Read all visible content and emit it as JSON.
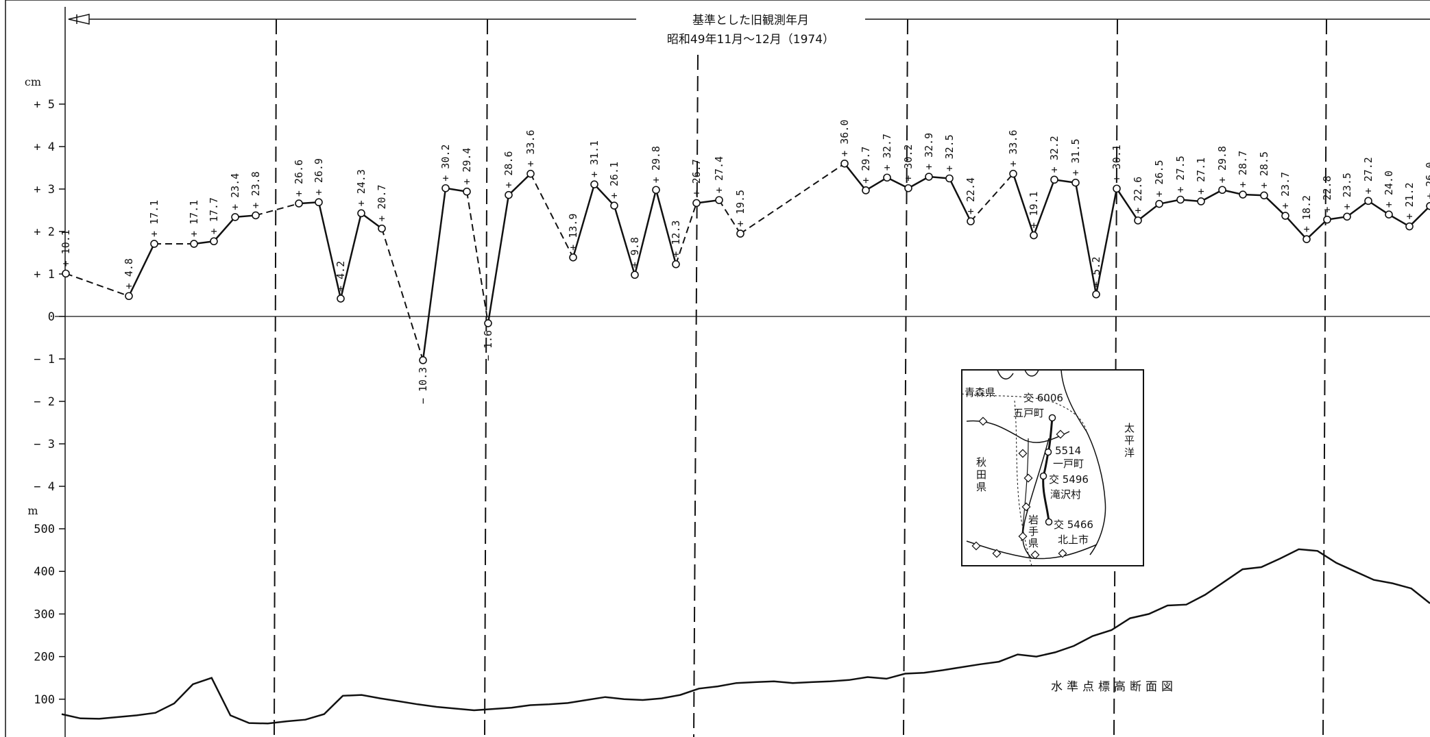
{
  "chart_data": [
    {
      "type": "line",
      "title": "基準とした旧観測年月",
      "subtitle": "昭和49年11月～12月（1974）",
      "unit": "cm",
      "ylim": [
        -5,
        5
      ],
      "y_ticks": [
        "+ 5",
        "+ 4",
        "+ 3",
        "+ 2",
        "+ 1",
        "0",
        "− 1",
        "− 2",
        "− 3",
        "− 4"
      ],
      "grid": false,
      "points": [
        {
          "label": "+ 10.1",
          "value": 10.1
        },
        {
          "label": "+ 4.8",
          "value": 4.8
        },
        {
          "label": "+ 17.1",
          "value": 17.1
        },
        {
          "label": "+ 17.1",
          "value": 17.1
        },
        {
          "label": "+ 17.7",
          "value": 17.7
        },
        {
          "label": "+ 23.4",
          "value": 23.4
        },
        {
          "label": "+ 23.8",
          "value": 23.8
        },
        {
          "label": "+ 26.6",
          "value": 26.6
        },
        {
          "label": "+ 26.9",
          "value": 26.9
        },
        {
          "label": "+ 4.2",
          "value": 4.2
        },
        {
          "label": "+ 24.3",
          "value": 24.3
        },
        {
          "label": "+ 20.7",
          "value": 20.7
        },
        {
          "label": "− 10.3",
          "value": -10.3
        },
        {
          "label": "+ 30.2",
          "value": 30.2
        },
        {
          "label": "+ 29.4",
          "value": 29.4
        },
        {
          "label": "− 1.6",
          "value": -1.6
        },
        {
          "label": "+ 28.6",
          "value": 28.6
        },
        {
          "label": "+ 33.6",
          "value": 33.6
        },
        {
          "label": "+ 13.9",
          "value": 13.9
        },
        {
          "label": "+ 31.1",
          "value": 31.1
        },
        {
          "label": "+ 26.1",
          "value": 26.1
        },
        {
          "label": "+ 9.8",
          "value": 9.8
        },
        {
          "label": "+ 29.8",
          "value": 29.8
        },
        {
          "label": "+ 12.3",
          "value": 12.3
        },
        {
          "label": "+ 26.7",
          "value": 26.7
        },
        {
          "label": "+ 27.4",
          "value": 27.4
        },
        {
          "label": "+ 19.5",
          "value": 19.5
        },
        {
          "label": "+ 36.0",
          "value": 36.0
        },
        {
          "label": "+ 29.7",
          "value": 29.7
        },
        {
          "label": "+ 32.7",
          "value": 32.7
        },
        {
          "label": "+ 30.2",
          "value": 30.2
        },
        {
          "label": "+ 32.9",
          "value": 32.9
        },
        {
          "label": "+ 32.5",
          "value": 32.5
        },
        {
          "label": "+ 22.4",
          "value": 22.4
        },
        {
          "label": "+ 33.6",
          "value": 33.6
        },
        {
          "label": "+ 19.1",
          "value": 19.1
        },
        {
          "label": "+ 32.2",
          "value": 32.2
        },
        {
          "label": "+ 31.5",
          "value": 31.5
        },
        {
          "label": "+ 5.2",
          "value": 5.2
        },
        {
          "label": "+ 30.1",
          "value": 30.1
        },
        {
          "label": "+ 22.6",
          "value": 22.6
        },
        {
          "label": "+ 26.5",
          "value": 26.5
        },
        {
          "label": "+ 27.5",
          "value": 27.5
        },
        {
          "label": "+ 27.1",
          "value": 27.1
        },
        {
          "label": "+ 29.8",
          "value": 29.8
        },
        {
          "label": "+ 28.7",
          "value": 28.7
        },
        {
          "label": "+ 28.5",
          "value": 28.5
        },
        {
          "label": "+ 23.7",
          "value": 23.7
        },
        {
          "label": "+ 18.2",
          "value": 18.2
        },
        {
          "label": "+ 22.8",
          "value": 22.8
        },
        {
          "label": "+ 23.5",
          "value": 23.5
        },
        {
          "label": "+ 27.2",
          "value": 27.2
        },
        {
          "label": "+ 24.0",
          "value": 24.0
        },
        {
          "label": "+ 21.2",
          "value": 21.2
        },
        {
          "label": "+ 26.0",
          "value": 26.0
        }
      ]
    },
    {
      "type": "area",
      "title": "水準点標高断面図",
      "unit": "m",
      "ylim": [
        0,
        500
      ],
      "y_ticks": [
        "500",
        "400",
        "300",
        "200",
        "100"
      ],
      "profile_values": [
        65,
        55,
        54,
        58,
        62,
        68,
        90,
        135,
        150,
        62,
        44,
        43,
        48,
        52,
        65,
        108,
        110,
        102,
        95,
        88,
        82,
        78,
        74,
        77,
        80,
        86,
        88,
        91,
        98,
        105,
        100,
        98,
        102,
        110,
        125,
        130,
        138,
        140,
        142,
        138,
        140,
        142,
        145,
        152,
        148,
        160,
        162,
        168,
        175,
        182,
        188,
        205,
        200,
        210,
        225,
        248,
        262,
        290,
        300,
        320,
        322,
        345,
        375,
        405,
        410,
        430,
        452,
        448,
        420,
        400,
        380,
        372,
        360,
        325
      ]
    }
  ],
  "inset_map": {
    "labels": {
      "aomori": "青森県",
      "akita_1": "秋",
      "akita_2": "田",
      "akita_3": "県",
      "iwate_1": "岩",
      "iwate_2": "手",
      "iwate_3": "県",
      "pacific_1": "太",
      "pacific_2": "平",
      "pacific_3": "洋",
      "bm_6006": "交 6006",
      "town_gonohe": "五戸町",
      "bm_5514": "5514",
      "town_ichinohe": "一戸町",
      "bm_5496": "交 5496",
      "village_takizawa": "滝沢村",
      "bm_5466": "交 5466",
      "city_kitakami": "北上市"
    }
  }
}
